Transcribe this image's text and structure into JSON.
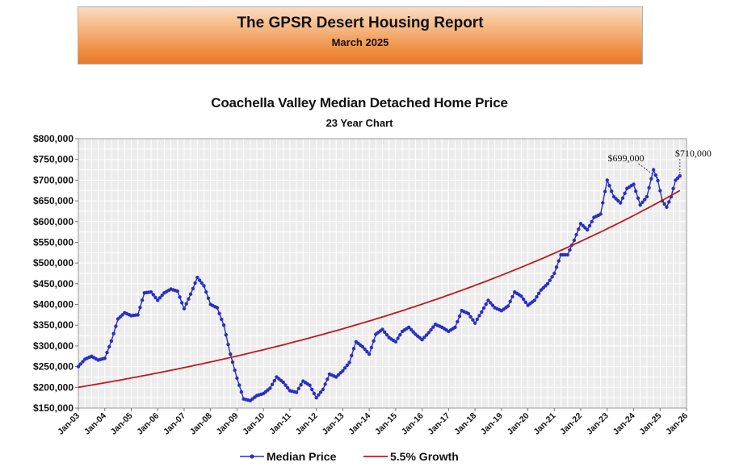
{
  "header": {
    "title": "The GPSR Desert Housing Report",
    "subtitle": "March 2025"
  },
  "chart_data": {
    "type": "line",
    "title": "Coachella Valley Median Detached Home Price",
    "subtitle": "23 Year Chart",
    "xlabel": "",
    "ylabel": "",
    "x_tick_labels": [
      "Jan-03",
      "Jan-04",
      "Jan-05",
      "Jan-06",
      "Jan-07",
      "Jan-08",
      "Jan-09",
      "Jan-10",
      "Jan-11",
      "Jan-12",
      "Jan-13",
      "Jan-14",
      "Jan-15",
      "Jan-16",
      "Jan-17",
      "Jan-18",
      "Jan-19",
      "Jan-20",
      "Jan-21",
      "Jan-22",
      "Jan-23",
      "Jan-24",
      "Jan-25",
      "Jan-26"
    ],
    "x_range": [
      "Jan-03",
      "Jan-26"
    ],
    "y_tick_labels": [
      "$150,000",
      "$200,000",
      "$250,000",
      "$300,000",
      "$350,000",
      "$400,000",
      "$450,000",
      "$500,000",
      "$550,000",
      "$600,000",
      "$650,000",
      "$700,000",
      "$750,000",
      "$800,000"
    ],
    "ylim": [
      150000,
      800000
    ],
    "grid": true,
    "legend_position": "bottom",
    "series": [
      {
        "name": "Median Price",
        "color": "#2a2fc4",
        "marker": "circle",
        "points": [
          [
            "2003-01",
            250000
          ],
          [
            "2003-04",
            268000
          ],
          [
            "2003-07",
            275000
          ],
          [
            "2003-10",
            266000
          ],
          [
            "2004-01",
            270000
          ],
          [
            "2004-04",
            312000
          ],
          [
            "2004-07",
            365000
          ],
          [
            "2004-10",
            380000
          ],
          [
            "2005-01",
            373000
          ],
          [
            "2005-04",
            375000
          ],
          [
            "2005-07",
            428000
          ],
          [
            "2005-10",
            430000
          ],
          [
            "2006-01",
            410000
          ],
          [
            "2006-04",
            428000
          ],
          [
            "2006-07",
            437000
          ],
          [
            "2006-10",
            432000
          ],
          [
            "2007-01",
            390000
          ],
          [
            "2007-04",
            425000
          ],
          [
            "2007-07",
            465000
          ],
          [
            "2007-10",
            445000
          ],
          [
            "2008-01",
            400000
          ],
          [
            "2008-04",
            392000
          ],
          [
            "2008-07",
            350000
          ],
          [
            "2008-10",
            280000
          ],
          [
            "2009-01",
            222000
          ],
          [
            "2009-04",
            172000
          ],
          [
            "2009-07",
            168000
          ],
          [
            "2009-10",
            180000
          ],
          [
            "2010-01",
            185000
          ],
          [
            "2010-04",
            198000
          ],
          [
            "2010-07",
            225000
          ],
          [
            "2010-10",
            212000
          ],
          [
            "2011-01",
            192000
          ],
          [
            "2011-04",
            188000
          ],
          [
            "2011-07",
            215000
          ],
          [
            "2011-10",
            205000
          ],
          [
            "2012-01",
            175000
          ],
          [
            "2012-04",
            195000
          ],
          [
            "2012-07",
            232000
          ],
          [
            "2012-10",
            225000
          ],
          [
            "2013-01",
            240000
          ],
          [
            "2013-04",
            260000
          ],
          [
            "2013-07",
            310000
          ],
          [
            "2013-10",
            298000
          ],
          [
            "2014-01",
            280000
          ],
          [
            "2014-04",
            328000
          ],
          [
            "2014-07",
            340000
          ],
          [
            "2014-10",
            320000
          ],
          [
            "2015-01",
            310000
          ],
          [
            "2015-04",
            335000
          ],
          [
            "2015-07",
            345000
          ],
          [
            "2015-10",
            328000
          ],
          [
            "2016-01",
            315000
          ],
          [
            "2016-04",
            332000
          ],
          [
            "2016-07",
            352000
          ],
          [
            "2016-10",
            345000
          ],
          [
            "2017-01",
            335000
          ],
          [
            "2017-04",
            345000
          ],
          [
            "2017-07",
            385000
          ],
          [
            "2017-10",
            378000
          ],
          [
            "2018-01",
            355000
          ],
          [
            "2018-04",
            382000
          ],
          [
            "2018-07",
            410000
          ],
          [
            "2018-10",
            392000
          ],
          [
            "2019-01",
            385000
          ],
          [
            "2019-04",
            396000
          ],
          [
            "2019-07",
            430000
          ],
          [
            "2019-10",
            420000
          ],
          [
            "2020-01",
            398000
          ],
          [
            "2020-04",
            410000
          ],
          [
            "2020-07",
            435000
          ],
          [
            "2020-10",
            450000
          ],
          [
            "2021-01",
            475000
          ],
          [
            "2021-04",
            520000
          ],
          [
            "2021-07",
            520000
          ],
          [
            "2021-10",
            555000
          ],
          [
            "2022-01",
            595000
          ],
          [
            "2022-04",
            580000
          ],
          [
            "2022-07",
            610000
          ],
          [
            "2022-10",
            618000
          ],
          [
            "2023-01",
            700000
          ],
          [
            "2023-04",
            660000
          ],
          [
            "2023-07",
            645000
          ],
          [
            "2023-10",
            680000
          ],
          [
            "2024-01",
            690000
          ],
          [
            "2024-04",
            640000
          ],
          [
            "2024-07",
            660000
          ],
          [
            "2024-10",
            725000
          ],
          [
            "2024-12",
            699000
          ],
          [
            "2025-02",
            650000
          ],
          [
            "2025-04",
            635000
          ],
          [
            "2025-06",
            660000
          ],
          [
            "2025-08",
            700000
          ],
          [
            "2025-10",
            710000
          ]
        ]
      },
      {
        "name": "5.5% Growth",
        "color": "#c0191c",
        "marker": "none",
        "points": [
          [
            "2003-01",
            200000
          ],
          [
            "2005-01",
            222600
          ],
          [
            "2007-01",
            247800
          ],
          [
            "2009-01",
            275800
          ],
          [
            "2011-01",
            307000
          ],
          [
            "2013-01",
            341600
          ],
          [
            "2015-01",
            380200
          ],
          [
            "2017-01",
            423200
          ],
          [
            "2019-01",
            471000
          ],
          [
            "2021-01",
            524200
          ],
          [
            "2023-01",
            583500
          ],
          [
            "2025-01",
            649500
          ],
          [
            "2025-10",
            675000
          ]
        ]
      }
    ],
    "annotations": [
      {
        "text": "$699,000",
        "point": [
          "2024-12",
          699000
        ]
      },
      {
        "text": "$710,000",
        "point": [
          "2025-10",
          710000
        ]
      }
    ]
  }
}
